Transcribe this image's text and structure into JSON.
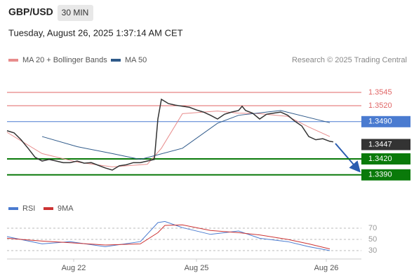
{
  "header": {
    "symbol": "GBP/USD",
    "interval": "30 MIN",
    "timestamp": "Tuesday, August 26, 2025 1:37:14 AM CET",
    "credit": "Research © 2025 Trading Central"
  },
  "chart_data": [
    {
      "type": "line",
      "xlim": [
        0,
        101
      ],
      "ylim": [
        1.3335,
        1.359
      ],
      "xticks": [
        {
          "value": 19,
          "label": "Aug 22"
        },
        {
          "value": 54,
          "label": "Aug 25"
        },
        {
          "value": 91,
          "label": "Aug 26"
        }
      ],
      "yticks": [
        1.3545,
        {
          "value": 1.352,
          "label": "1.3520"
        },
        {
          "value": 1.349,
          "label": "1.3490"
        },
        1.3447,
        {
          "value": 1.342,
          "label": "1.3420"
        },
        {
          "value": 1.339,
          "label": "1.3390"
        }
      ],
      "ytick_colors": [
        "#e06666",
        "#e06666",
        "#4a7bd0",
        "#333333",
        "#0a7a0a",
        "#0a7a0a"
      ],
      "ytick_styles": [
        "line",
        "line",
        "line-box",
        "box",
        "line-box",
        "line-box"
      ],
      "price": {
        "color": "#333333",
        "x": [
          0,
          2,
          4,
          6,
          8,
          10,
          12,
          14,
          16,
          18,
          20,
          22,
          24,
          26,
          28,
          30,
          32,
          34,
          36,
          38,
          40,
          42,
          43,
          44,
          45,
          46,
          48,
          50,
          52,
          54,
          56,
          58,
          60,
          62,
          64,
          66,
          67,
          68,
          70,
          72,
          74,
          76,
          78,
          80,
          82,
          84,
          86,
          88,
          90,
          92,
          93
        ],
        "values": [
          1.3473,
          1.3469,
          1.3456,
          1.344,
          1.3423,
          1.3416,
          1.3419,
          1.3416,
          1.3413,
          1.3413,
          1.3416,
          1.3412,
          1.3413,
          1.3408,
          1.3403,
          1.3399,
          1.3407,
          1.3409,
          1.3413,
          1.3413,
          1.3416,
          1.3419,
          1.3495,
          1.3532,
          1.3528,
          1.3524,
          1.3521,
          1.3519,
          1.3517,
          1.3512,
          1.3508,
          1.3502,
          1.3495,
          1.3504,
          1.3508,
          1.3511,
          1.3519,
          1.3511,
          1.3506,
          1.3495,
          1.3504,
          1.3506,
          1.3508,
          1.3502,
          1.3491,
          1.3482,
          1.3462,
          1.3456,
          1.3458,
          1.3453,
          1.3452
        ]
      },
      "series": [
        {
          "name": "MA 20 + Bollinger Bands",
          "color": "#e88c8c",
          "x": [
            0,
            10,
            20,
            30,
            40,
            44,
            50,
            60,
            66,
            72,
            80,
            86,
            92
          ],
          "values": [
            1.347,
            1.343,
            1.3414,
            1.3405,
            1.341,
            1.344,
            1.3505,
            1.351,
            1.3506,
            1.3505,
            1.35,
            1.348,
            1.3462
          ]
        },
        {
          "name": "MA 50",
          "color": "#2f5a8a",
          "x": [
            10,
            20,
            30,
            38,
            50,
            60,
            66,
            78,
            92
          ],
          "values": [
            1.3462,
            1.3443,
            1.343,
            1.3419,
            1.344,
            1.3487,
            1.3502,
            1.3511,
            1.3488
          ]
        }
      ]
    },
    {
      "type": "line",
      "xlim": [
        0,
        101
      ],
      "ylim": [
        15,
        100
      ],
      "yticks": [
        30,
        50,
        70
      ],
      "grid": true,
      "series": [
        {
          "name": "RSI",
          "color": "#4a7bd0",
          "x": [
            0,
            10,
            18,
            28,
            38,
            43,
            45,
            50,
            58,
            66,
            72,
            80,
            86,
            92
          ],
          "values": [
            55,
            42,
            46,
            37,
            46,
            80,
            82,
            71,
            59,
            65,
            52,
            46,
            37,
            30
          ]
        },
        {
          "name": "9MA",
          "color": "#cc3333",
          "x": [
            0,
            10,
            18,
            28,
            38,
            43,
            45,
            50,
            58,
            66,
            72,
            80,
            86,
            92
          ],
          "values": [
            52,
            47,
            44,
            40,
            42,
            62,
            75,
            76,
            66,
            62,
            58,
            50,
            42,
            33
          ]
        }
      ]
    }
  ]
}
